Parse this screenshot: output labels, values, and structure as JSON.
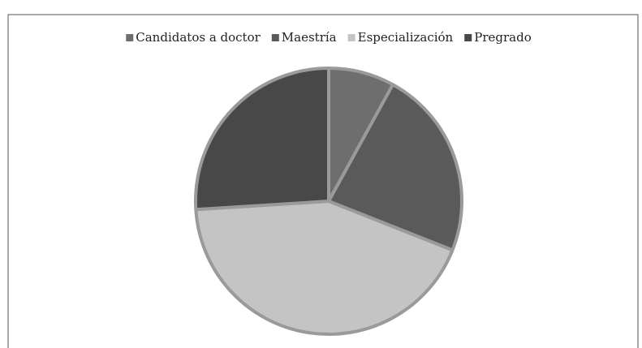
{
  "chart_data": {
    "type": "pie",
    "categories": [
      "Candidatos a doctor",
      "Maestría",
      "Especialización",
      "Pregrado"
    ],
    "values": [
      8,
      23,
      43,
      26
    ],
    "colors": [
      "#6e6e6e",
      "#5a5a5a",
      "#c4c4c4",
      "#484848"
    ],
    "legend": "top"
  }
}
